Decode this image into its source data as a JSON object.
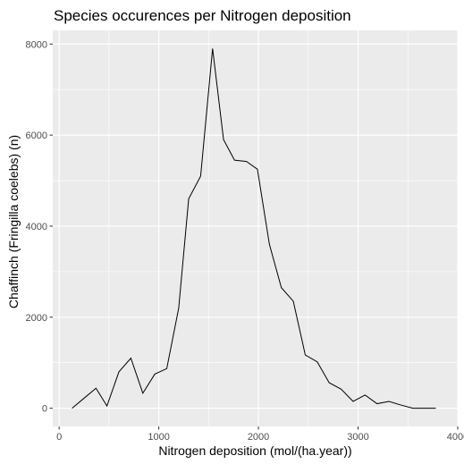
{
  "chart_data": {
    "type": "line",
    "title": "Species occurences per Nitrogen deposition",
    "xlabel": "Nitrogen deposition (mol/(ha.year))",
    "ylabel": "Chaffinch (Fringilla coelebs) (n)",
    "xlim": [
      0,
      4000
    ],
    "ylim": [
      0,
      8000
    ],
    "x_ticks": [
      0,
      1000,
      2000,
      3000,
      4000
    ],
    "y_ticks": [
      0,
      2000,
      4000,
      6000,
      8000
    ],
    "grid": true,
    "panel_background": "#ebebeb",
    "grid_color": "#ffffff",
    "line_color": "#000000",
    "series": [
      {
        "x": [
          130,
          250,
          370,
          480,
          600,
          720,
          840,
          960,
          1080,
          1200,
          1300,
          1420,
          1540,
          1650,
          1760,
          1880,
          1990,
          2110,
          2230,
          2350,
          2470,
          2590,
          2710,
          2830,
          2950,
          3070,
          3190,
          3310,
          3430,
          3550,
          3780
        ],
        "y": [
          0,
          220,
          440,
          50,
          800,
          1100,
          330,
          750,
          870,
          2200,
          4600,
          5100,
          7900,
          5900,
          5450,
          5420,
          5250,
          3600,
          2650,
          2350,
          1170,
          1020,
          560,
          420,
          150,
          290,
          100,
          150,
          70,
          0,
          0
        ]
      }
    ]
  }
}
